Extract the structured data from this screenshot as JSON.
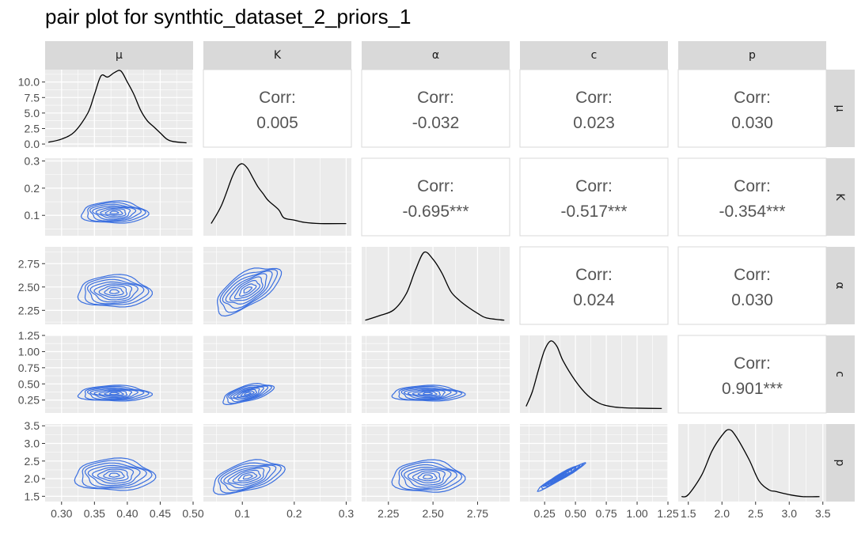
{
  "title": "pair plot for synthtic_dataset_2_priors_1",
  "variables": [
    "μ",
    "K",
    "α",
    "c",
    "p"
  ],
  "colors": {
    "panel_bg": "#ebebeb",
    "strip_bg": "#d9d9d9",
    "grid_major": "#ffffff",
    "contour": "#3a6fe0",
    "density": "#000000",
    "corr_text": "#595959"
  },
  "chart_data": {
    "type": "pairs",
    "variables": [
      "μ",
      "K",
      "α",
      "c",
      "p"
    ],
    "axes": {
      "μ": {
        "range": [
          0.275,
          0.5
        ],
        "ticks": [
          "0.30",
          "0.35",
          "0.40",
          "0.45",
          "0.50"
        ],
        "tick_values": [
          0.3,
          0.35,
          0.4,
          0.45,
          0.5
        ]
      },
      "K": {
        "range": [
          0.025,
          0.31
        ],
        "ticks": [
          "0.1",
          "0.2",
          "0.3"
        ],
        "tick_values": [
          0.1,
          0.2,
          0.3
        ]
      },
      "α": {
        "range": [
          2.1,
          2.93
        ],
        "ticks": [
          "2.25",
          "2.50",
          "2.75"
        ],
        "tick_values": [
          2.25,
          2.5,
          2.75
        ]
      },
      "c": {
        "range": [
          0.05,
          1.25
        ],
        "ticks": [
          "0.25",
          "0.50",
          "0.75",
          "1.00",
          "1.25"
        ],
        "tick_values": [
          0.25,
          0.5,
          0.75,
          1.0,
          1.25
        ]
      },
      "p": {
        "range": [
          1.35,
          3.55
        ],
        "ticks": [
          "1.5",
          "2.0",
          "2.5",
          "3.0",
          "3.5"
        ],
        "tick_values": [
          1.5,
          2.0,
          2.5,
          3.0,
          3.5
        ]
      }
    },
    "diag_y_axis": {
      "range": [
        -0.5,
        12
      ],
      "ticks": [
        "0.0",
        "2.5",
        "5.0",
        "7.5",
        "10.0"
      ],
      "tick_values": [
        0,
        2.5,
        5,
        7.5,
        10
      ]
    },
    "densities": [
      {
        "var": "μ",
        "x": [
          0.28,
          0.3,
          0.32,
          0.34,
          0.35,
          0.36,
          0.37,
          0.38,
          0.39,
          0.4,
          0.41,
          0.42,
          0.43,
          0.44,
          0.45,
          0.46,
          0.47,
          0.49
        ],
        "y": [
          0.3,
          0.8,
          2.0,
          5.0,
          8.0,
          11.0,
          10.8,
          11.5,
          11.8,
          10.0,
          8.0,
          5.5,
          3.8,
          2.8,
          1.8,
          0.8,
          0.4,
          0.2
        ]
      },
      {
        "var": "K",
        "x": [
          0.04,
          0.06,
          0.08,
          0.09,
          0.1,
          0.11,
          0.12,
          0.13,
          0.14,
          0.15,
          0.17,
          0.18,
          0.2,
          0.22,
          0.25,
          0.3
        ],
        "y": [
          0.04,
          0.12,
          0.24,
          0.285,
          0.3,
          0.28,
          0.24,
          0.2,
          0.17,
          0.14,
          0.1,
          0.065,
          0.055,
          0.045,
          0.04,
          0.04
        ]
      },
      {
        "var": "α",
        "x": [
          2.12,
          2.2,
          2.28,
          2.35,
          2.4,
          2.45,
          2.5,
          2.55,
          2.6,
          2.65,
          2.7,
          2.75,
          2.8,
          2.9
        ],
        "y": [
          0.05,
          0.25,
          0.5,
          1.2,
          2.2,
          3.0,
          2.7,
          2.1,
          1.3,
          0.9,
          0.6,
          0.35,
          0.15,
          0.05
        ]
      },
      {
        "var": "c",
        "x": [
          0.1,
          0.15,
          0.2,
          0.25,
          0.3,
          0.35,
          0.4,
          0.5,
          0.6,
          0.7,
          0.8,
          0.9,
          1.0,
          1.2
        ],
        "y": [
          0.2,
          1.0,
          2.2,
          3.3,
          3.8,
          3.5,
          2.7,
          1.6,
          0.8,
          0.35,
          0.18,
          0.12,
          0.1,
          0.08
        ]
      },
      {
        "var": "p",
        "x": [
          1.4,
          1.5,
          1.7,
          1.85,
          2.0,
          2.1,
          2.2,
          2.4,
          2.55,
          2.7,
          2.8,
          3.0,
          3.2,
          3.45
        ],
        "y": [
          0.05,
          0.1,
          0.6,
          1.2,
          1.6,
          1.75,
          1.6,
          1.0,
          0.45,
          0.22,
          0.18,
          0.1,
          0.05,
          0.05
        ]
      }
    ],
    "correlations": [
      {
        "row": "μ",
        "col": "K",
        "label": "Corr:",
        "value": "0.005"
      },
      {
        "row": "μ",
        "col": "α",
        "label": "Corr:",
        "value": "-0.032"
      },
      {
        "row": "μ",
        "col": "c",
        "label": "Corr:",
        "value": "0.023"
      },
      {
        "row": "μ",
        "col": "p",
        "label": "Corr:",
        "value": "0.030"
      },
      {
        "row": "K",
        "col": "α",
        "label": "Corr:",
        "value": "-0.695***"
      },
      {
        "row": "K",
        "col": "c",
        "label": "Corr:",
        "value": "-0.517***"
      },
      {
        "row": "K",
        "col": "p",
        "label": "Corr:",
        "value": "-0.354***"
      },
      {
        "row": "α",
        "col": "c",
        "label": "Corr:",
        "value": "0.024"
      },
      {
        "row": "α",
        "col": "p",
        "label": "Corr:",
        "value": "0.030"
      },
      {
        "row": "c",
        "col": "p",
        "label": "Corr:",
        "value": "0.901***"
      }
    ],
    "contour_pairs": [
      {
        "row": "K",
        "col": "μ",
        "center": [
          0.38,
          0.11
        ],
        "spread": [
          0.05,
          0.04
        ],
        "angle": 0
      },
      {
        "row": "α",
        "col": "μ",
        "center": [
          0.38,
          2.45
        ],
        "spread": [
          0.055,
          0.17
        ],
        "angle": 0
      },
      {
        "row": "α",
        "col": "K",
        "center": [
          0.11,
          2.47
        ],
        "spread": [
          0.07,
          0.17
        ],
        "angle": -32
      },
      {
        "row": "c",
        "col": "μ",
        "center": [
          0.38,
          0.35
        ],
        "spread": [
          0.055,
          0.12
        ],
        "angle": 0
      },
      {
        "row": "c",
        "col": "K",
        "center": [
          0.11,
          0.35
        ],
        "spread": [
          0.05,
          0.12
        ],
        "angle": -15
      },
      {
        "row": "c",
        "col": "α",
        "center": [
          2.47,
          0.35
        ],
        "spread": [
          0.2,
          0.12
        ],
        "angle": 0
      },
      {
        "row": "p",
        "col": "μ",
        "center": [
          0.38,
          2.1
        ],
        "spread": [
          0.06,
          0.45
        ],
        "angle": 0
      },
      {
        "row": "p",
        "col": "K",
        "center": [
          0.11,
          2.05
        ],
        "spread": [
          0.07,
          0.4
        ],
        "angle": -15
      },
      {
        "row": "p",
        "col": "α",
        "center": [
          2.47,
          2.05
        ],
        "spread": [
          0.2,
          0.45
        ],
        "angle": 0
      },
      {
        "row": "p",
        "col": "c",
        "center": [
          0.38,
          2.05
        ],
        "spread": [
          0.22,
          0.08
        ],
        "angle": -30
      }
    ]
  }
}
